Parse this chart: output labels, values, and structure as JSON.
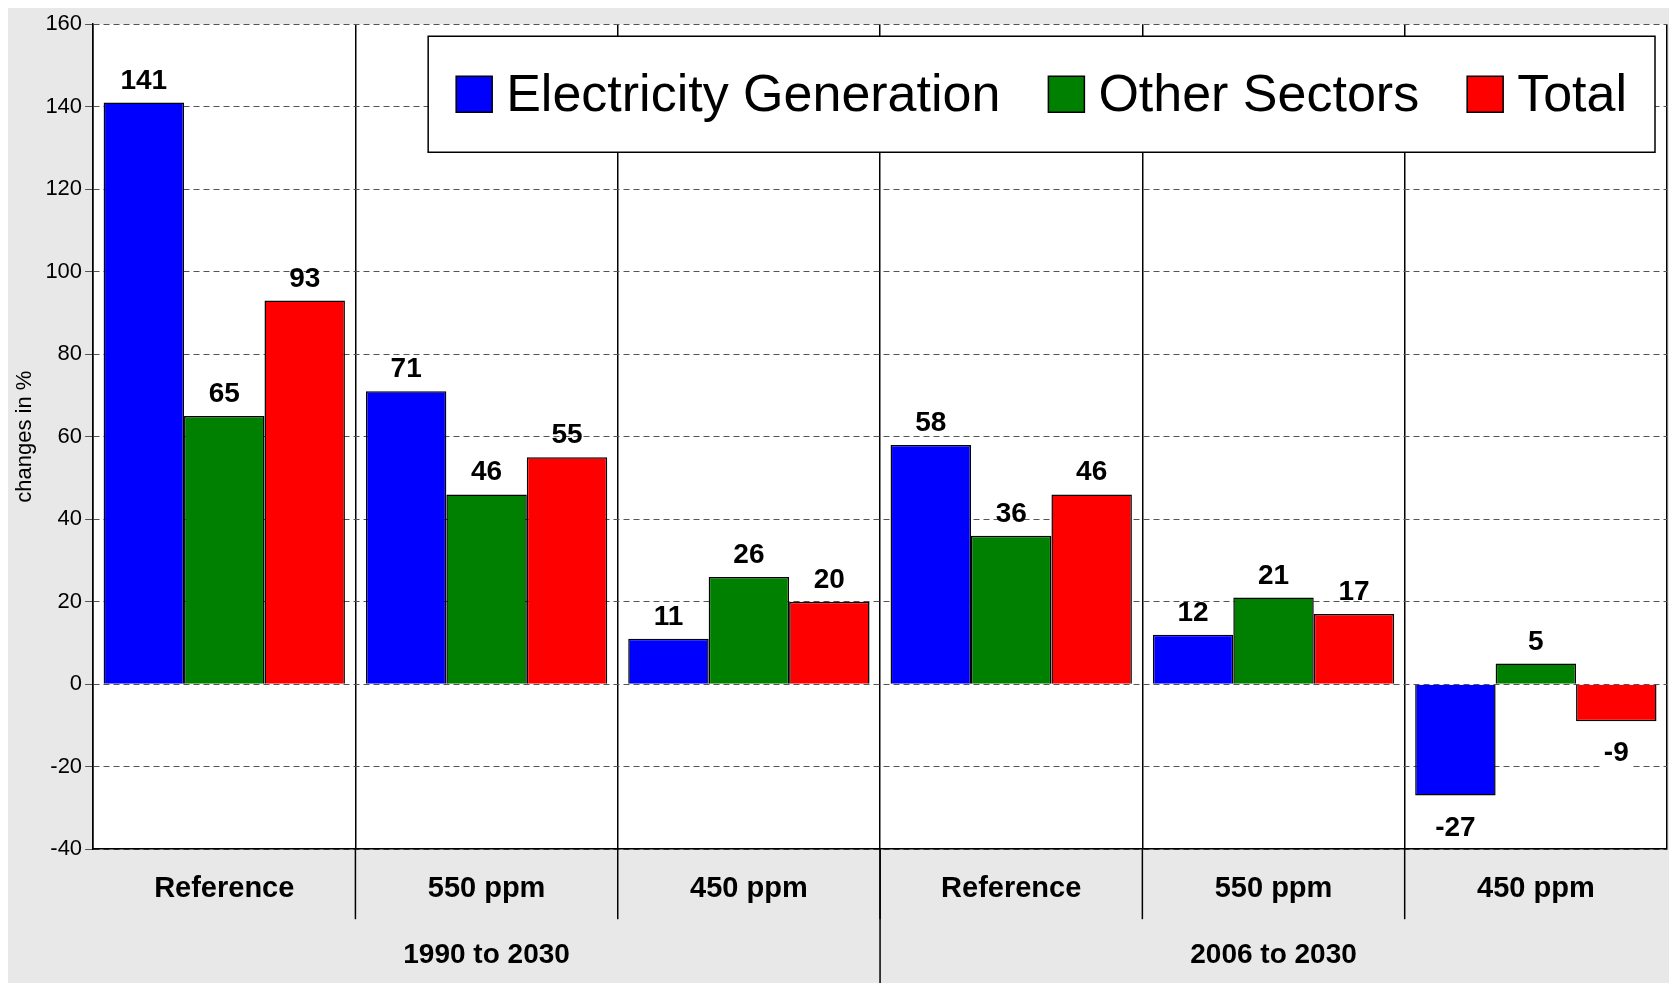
{
  "chart_data": {
    "type": "bar",
    "ylabel": "changes in %",
    "categories": [
      "Reference",
      "550 ppm",
      "450 ppm",
      "Reference",
      "550 ppm",
      "450 ppm"
    ],
    "series": [
      {
        "name": "Electricity Generation",
        "color": "#0000ff",
        "values": [
          141,
          71,
          11,
          58,
          12,
          -27
        ]
      },
      {
        "name": "Other Sectors",
        "color": "#008000",
        "values": [
          65,
          46,
          26,
          36,
          21,
          5
        ]
      },
      {
        "name": "Total",
        "color": "#ff0000",
        "values": [
          93,
          55,
          20,
          46,
          17,
          -9
        ]
      }
    ],
    "ylim": [
      -40,
      160
    ],
    "yticks": [
      -40,
      -20,
      0,
      20,
      40,
      60,
      80,
      100,
      120,
      140,
      160
    ],
    "grid": true,
    "legend": "top right",
    "data_labels": true,
    "annotations": [
      "1990 to 2030",
      "2006 to 2030"
    ]
  }
}
